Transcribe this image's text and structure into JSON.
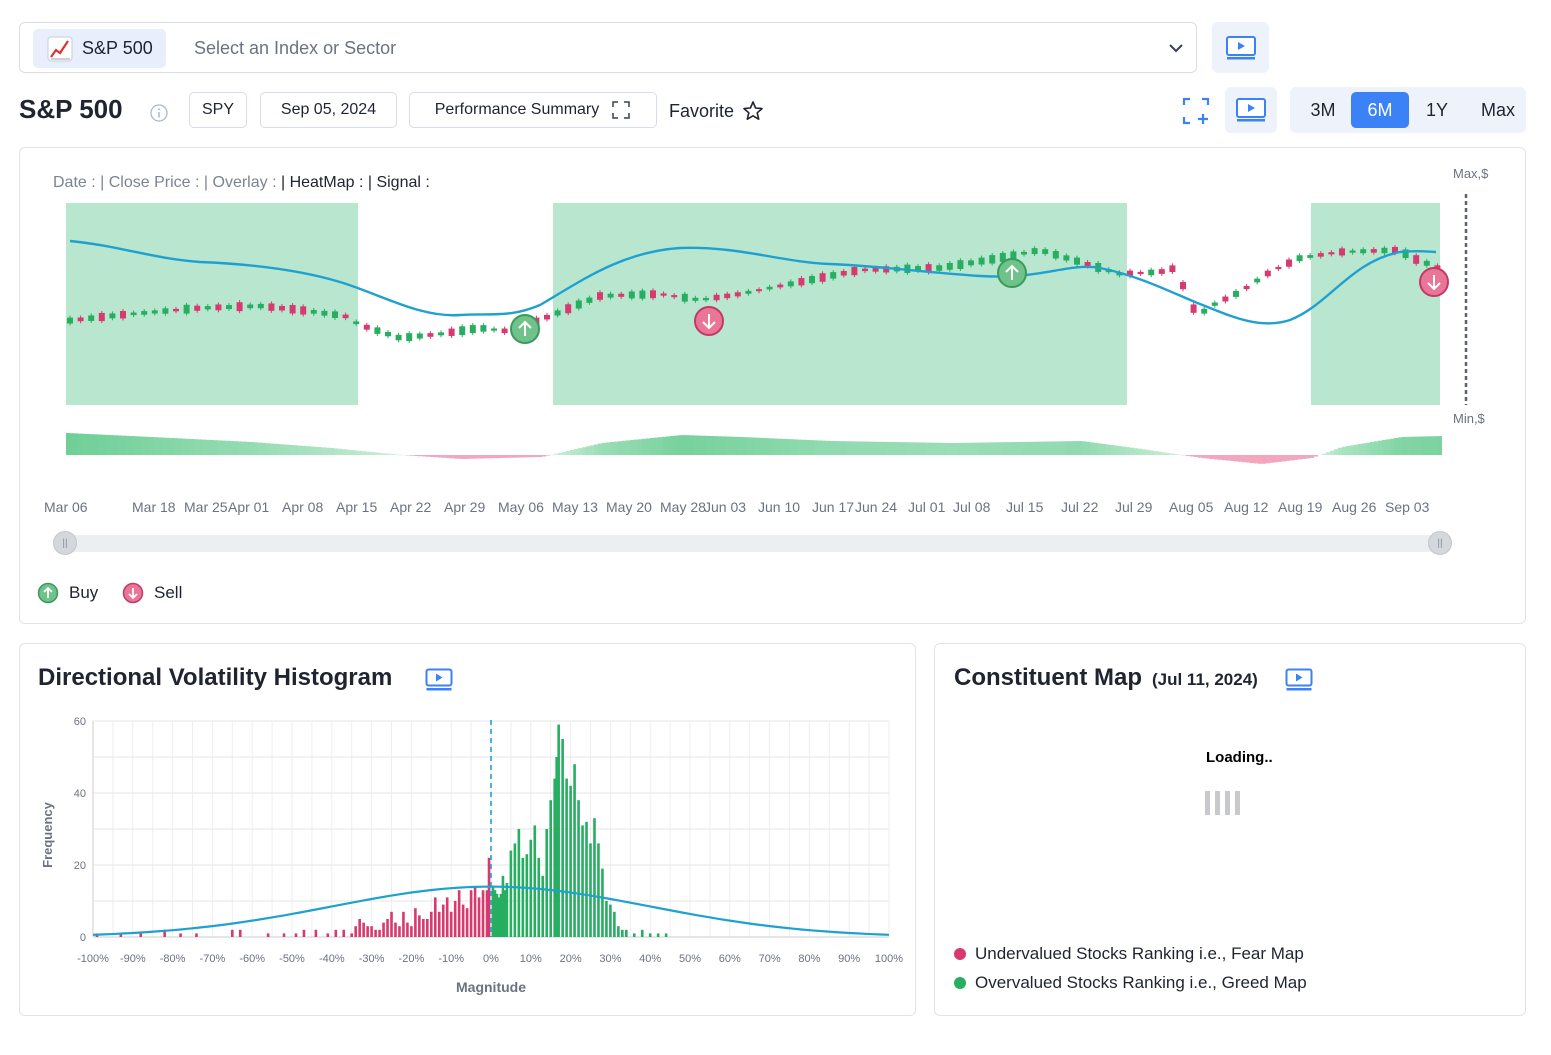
{
  "search": {
    "chip_label": "S&P 500",
    "chip_icon": "chart-up-icon",
    "placeholder": "Select an Index or Sector"
  },
  "header": {
    "title": "S&P 500",
    "ticker": "SPY",
    "date": "Sep 05, 2024",
    "summary_label": "Performance Summary",
    "favorite_label": "Favorite",
    "ranges": [
      "3M",
      "6M",
      "1Y",
      "Max"
    ],
    "active_range": "6M"
  },
  "price_chart": {
    "header": {
      "date": "Date :",
      "close": "| Close Price :",
      "overlay": "| Overlay :",
      "heatmap": "| HeatMap :",
      "signal": "| Signal :"
    },
    "max_label": "Max,$",
    "min_label": "Min,$",
    "date_ticks": [
      "Mar 06",
      "Mar 18",
      "Mar 25",
      "Apr 01",
      "Apr 08",
      "Apr 15",
      "Apr 22",
      "Apr 29",
      "May 06",
      "May 13",
      "May 20",
      "May 28",
      "Jun 03",
      "Jun 10",
      "Jun 17",
      "Jun 24",
      "Jul 01",
      "Jul 08",
      "Jul 15",
      "Jul 22",
      "Jul 29",
      "Aug 05",
      "Aug 12",
      "Aug 19",
      "Aug 26",
      "Sep 03"
    ],
    "legend": {
      "buy": "Buy",
      "sell": "Sell"
    },
    "colors": {
      "up": "#27ae60",
      "down": "#d63a6f",
      "overlay": "#1fa1d0",
      "heatmap": "#b8e6cf"
    }
  },
  "histogram": {
    "title": "Directional Volatility Histogram",
    "chart_data": {
      "type": "bar",
      "xlabel": "Magnitude",
      "ylabel": "Frequency",
      "xlim": [
        -100,
        100
      ],
      "ylim": [
        0,
        60
      ],
      "x_ticks": [
        "-100%",
        "-90%",
        "-80%",
        "-70%",
        "-60%",
        "-50%",
        "-40%",
        "-30%",
        "-20%",
        "-10%",
        "0%",
        "10%",
        "20%",
        "30%",
        "40%",
        "50%",
        "60%",
        "70%",
        "80%",
        "90%",
        "100%"
      ],
      "y_ticks": [
        "0",
        "20",
        "40",
        "60"
      ],
      "negative_color": "#d63a6f",
      "positive_color": "#27ae60",
      "curve_color": "#1fa1d0",
      "negative": {
        "x": [
          -99,
          -93,
          -88,
          -82,
          -78,
          -74,
          -65,
          -63,
          -56,
          -52,
          -49,
          -47,
          -44,
          -41,
          -39,
          -37,
          -35,
          -34,
          -33,
          -32,
          -31,
          -30,
          -29,
          -28,
          -27,
          -26,
          -25,
          -24,
          -23,
          -22,
          -21,
          -20,
          -19,
          -18,
          -17,
          -16,
          -15,
          -14,
          -13,
          -12,
          -11,
          -10,
          -9,
          -8,
          -7,
          -6,
          -5,
          -4,
          -3,
          -2,
          -1,
          -0.5
        ],
        "y": [
          1,
          1,
          1,
          2,
          1,
          1,
          2,
          2,
          1,
          1,
          1,
          2,
          2,
          1,
          2,
          2,
          1,
          3,
          5,
          4,
          3,
          3,
          2,
          2,
          4,
          5,
          7,
          4,
          3,
          7,
          4,
          3,
          8,
          6,
          5,
          5,
          7,
          11,
          7,
          9,
          11,
          7,
          10,
          13,
          9,
          8,
          13,
          14,
          11,
          13,
          13,
          22
        ]
      },
      "positive": {
        "x": [
          0.5,
          1,
          1.5,
          2,
          2.5,
          3,
          3.5,
          4,
          5,
          6,
          7,
          8,
          9,
          10,
          11,
          12,
          13,
          14,
          15,
          16,
          16.5,
          17,
          18,
          19,
          20,
          21,
          22,
          23,
          24,
          25,
          26,
          27,
          28,
          29,
          30,
          31,
          32,
          33,
          34,
          36,
          38,
          40,
          42,
          44
        ],
        "y": [
          14,
          13,
          12,
          11,
          12,
          17,
          13,
          15,
          24,
          26,
          30,
          22,
          23,
          27,
          31,
          22,
          17,
          30,
          38,
          44,
          50,
          59,
          55,
          44,
          42,
          48,
          38,
          31,
          32,
          26,
          33,
          26,
          19,
          10,
          9,
          7,
          3,
          2,
          2,
          1,
          2,
          1,
          1,
          1
        ]
      },
      "normal_curve": {
        "mean": 0,
        "std": 40,
        "peak": 14
      }
    }
  },
  "constituent_map": {
    "title": "Constituent Map",
    "date": "(Jul 11, 2024)",
    "loading": "Loading..",
    "legend": [
      {
        "label": "Undervalued Stocks Ranking i.e., Fear Map",
        "color": "#d63a6f"
      },
      {
        "label": "Overvalued Stocks Ranking i.e., Greed Map",
        "color": "#27ae60"
      }
    ]
  }
}
